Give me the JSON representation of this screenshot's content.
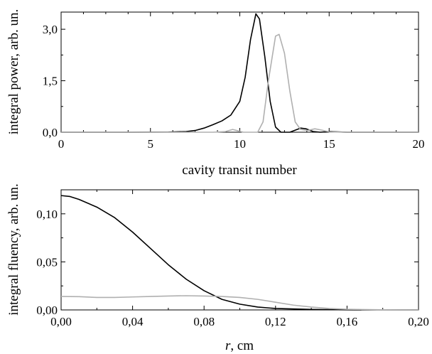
{
  "chart_data": [
    {
      "type": "line",
      "xlabel": "cavity transit number",
      "ylabel": "integral power, arb. un.",
      "xlim": [
        0,
        20
      ],
      "ylim": [
        0,
        3.5
      ],
      "x_ticks": [
        0,
        5,
        10,
        15,
        20
      ],
      "x_tick_labels": [
        "0",
        "5",
        "10",
        "15",
        "20"
      ],
      "y_ticks": [
        0,
        1.5,
        3.0
      ],
      "y_tick_labels": [
        "0,0",
        "1,5",
        "3,0"
      ],
      "series": [
        {
          "color": "#000000",
          "points": [
            [
              0,
              0
            ],
            [
              4,
              0
            ],
            [
              6,
              0.005
            ],
            [
              7,
              0.02
            ],
            [
              7.5,
              0.05
            ],
            [
              8,
              0.12
            ],
            [
              8.5,
              0.22
            ],
            [
              9,
              0.33
            ],
            [
              9.5,
              0.5
            ],
            [
              10,
              0.9
            ],
            [
              10.3,
              1.6
            ],
            [
              10.6,
              2.7
            ],
            [
              10.9,
              3.45
            ],
            [
              11.1,
              3.3
            ],
            [
              11.4,
              2.2
            ],
            [
              11.7,
              0.9
            ],
            [
              12,
              0.15
            ],
            [
              12.3,
              0
            ],
            [
              12.8,
              0
            ],
            [
              13.1,
              0.06
            ],
            [
              13.4,
              0.12
            ],
            [
              13.7,
              0.1
            ],
            [
              14.1,
              0.02
            ],
            [
              14.5,
              0
            ],
            [
              15,
              0.02
            ],
            [
              15.5,
              0.01
            ],
            [
              16,
              0
            ],
            [
              20,
              0
            ]
          ]
        },
        {
          "color": "#b0b0b0",
          "points": [
            [
              0,
              0
            ],
            [
              8.5,
              0
            ],
            [
              9.2,
              0.02
            ],
            [
              9.6,
              0.08
            ],
            [
              9.9,
              0.04
            ],
            [
              10.2,
              0
            ],
            [
              11,
              0
            ],
            [
              11.3,
              0.3
            ],
            [
              11.6,
              1.5
            ],
            [
              12,
              2.8
            ],
            [
              12.2,
              2.85
            ],
            [
              12.5,
              2.3
            ],
            [
              12.8,
              1.2
            ],
            [
              13.1,
              0.3
            ],
            [
              13.4,
              0.08
            ],
            [
              13.8,
              0.05
            ],
            [
              14.2,
              0.1
            ],
            [
              14.6,
              0.06
            ],
            [
              15,
              0.01
            ],
            [
              16,
              0
            ],
            [
              20,
              0
            ]
          ]
        }
      ]
    },
    {
      "type": "line",
      "xlabel_italic": "r",
      "xlabel": ", cm",
      "ylabel": "integral fluency, arb. un.",
      "xlim": [
        0,
        0.2
      ],
      "ylim": [
        0,
        0.125
      ],
      "x_ticks": [
        0,
        0.04,
        0.08,
        0.12,
        0.16,
        0.2
      ],
      "x_tick_labels": [
        "0,00",
        "0,04",
        "0,08",
        "0,12",
        "0,16",
        "0,20"
      ],
      "y_ticks": [
        0,
        0.05,
        0.1
      ],
      "y_tick_labels": [
        "0,00",
        "0,05",
        "0,10"
      ],
      "series": [
        {
          "color": "#000000",
          "points": [
            [
              0,
              0.119
            ],
            [
              0.005,
              0.118
            ],
            [
              0.01,
              0.115
            ],
            [
              0.02,
              0.107
            ],
            [
              0.03,
              0.096
            ],
            [
              0.04,
              0.081
            ],
            [
              0.05,
              0.064
            ],
            [
              0.06,
              0.047
            ],
            [
              0.07,
              0.032
            ],
            [
              0.08,
              0.02
            ],
            [
              0.09,
              0.011
            ],
            [
              0.1,
              0.006
            ],
            [
              0.11,
              0.003
            ],
            [
              0.12,
              0.0015
            ],
            [
              0.14,
              0.0005
            ],
            [
              0.16,
              0.0001
            ],
            [
              0.2,
              0
            ]
          ]
        },
        {
          "color": "#b0b0b0",
          "points": [
            [
              0,
              0.014
            ],
            [
              0.01,
              0.0138
            ],
            [
              0.02,
              0.013
            ],
            [
              0.03,
              0.013
            ],
            [
              0.04,
              0.0135
            ],
            [
              0.05,
              0.014
            ],
            [
              0.06,
              0.0145
            ],
            [
              0.07,
              0.0148
            ],
            [
              0.08,
              0.0145
            ],
            [
              0.09,
              0.014
            ],
            [
              0.1,
              0.013
            ],
            [
              0.11,
              0.011
            ],
            [
              0.12,
              0.008
            ],
            [
              0.13,
              0.005
            ],
            [
              0.14,
              0.003
            ],
            [
              0.15,
              0.0015
            ],
            [
              0.16,
              0.0007
            ],
            [
              0.18,
              0.0001
            ],
            [
              0.2,
              0
            ]
          ]
        }
      ]
    }
  ]
}
